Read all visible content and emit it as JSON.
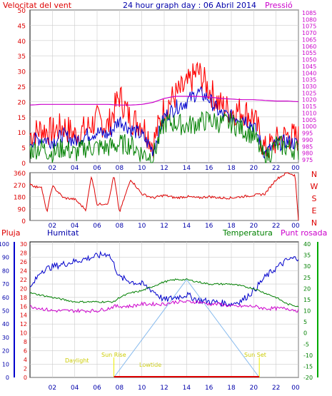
{
  "header": {
    "left_label": "Velocitat del vent",
    "title": "24 hour graph day : 06 Abril 2014",
    "right_label": "Pressió"
  },
  "x_ticks": [
    "02",
    "04",
    "06",
    "08",
    "10",
    "12",
    "14",
    "16",
    "18",
    "20",
    "22",
    "00"
  ],
  "panel2_compass": [
    "N",
    "W",
    "S",
    "E",
    "N"
  ],
  "panel3_labels": {
    "rain": "Pluja",
    "humidity": "Humitat",
    "temperature": "Temperatura",
    "dewpoint": "Punt rosada"
  },
  "sun_labels": {
    "daylight1": "Daylight",
    "sunrise": "Sun Rise",
    "lowtide": "Lowtide",
    "sunset": "Sun Set"
  },
  "colors": {
    "wind": "#ff0000",
    "gust_avg": "#0000cc",
    "speed": "#008000",
    "pressure": "#cc00cc",
    "direction": "#dd0000",
    "humidity": "#0000cc",
    "temperature": "#008000",
    "dewpoint": "#cc00cc",
    "rain": "#dd0000",
    "sun": "#88bbee",
    "grid": "#cccccc",
    "title": "#0000aa",
    "label_yellow": "#dddd00"
  },
  "chart_data": [
    {
      "type": "line",
      "title": "24 hour graph day : 06 Abril 2014",
      "x_hours": [
        0,
        1,
        2,
        3,
        4,
        5,
        6,
        7,
        8,
        9,
        10,
        11,
        12,
        13,
        14,
        15,
        16,
        17,
        18,
        19,
        20,
        21,
        22,
        23,
        24
      ],
      "series": [
        {
          "name": "Velocitat del vent",
          "axis": "left",
          "values": [
            9,
            11,
            10,
            12,
            9,
            11,
            14,
            12,
            22,
            14,
            13,
            6,
            18,
            22,
            25,
            30,
            24,
            19,
            17,
            17,
            15,
            4,
            7,
            9,
            8
          ]
        },
        {
          "name": "",
          "axis": "left",
          "values": [
            7,
            8,
            7,
            9,
            7,
            9,
            10,
            9,
            14,
            11,
            9,
            4,
            15,
            18,
            20,
            23,
            21,
            16,
            15,
            15,
            12,
            3,
            6,
            7,
            6
          ]
        },
        {
          "name": "",
          "axis": "left",
          "values": [
            4,
            5,
            3,
            5,
            3,
            5,
            5,
            5,
            6,
            6,
            3,
            2,
            13,
            13,
            12,
            13,
            14,
            13,
            13,
            11,
            9,
            1,
            6,
            5,
            4
          ]
        },
        {
          "name": "Pressió",
          "axis": "right",
          "values": [
            1016,
            1016.5,
            1016.5,
            1016.5,
            1016.5,
            1016.5,
            1016.5,
            1016.5,
            1016,
            1016,
            1016.5,
            1018,
            1021,
            1022.5,
            1022.5,
            1022.5,
            1022,
            1021,
            1020.5,
            1020,
            1020,
            1019.5,
            1019,
            1019,
            1018.5
          ]
        }
      ],
      "y_left": {
        "min": 0,
        "max": 50,
        "ticks": [
          0,
          5,
          10,
          15,
          20,
          25,
          30,
          35,
          40,
          45,
          50
        ]
      },
      "y_right": {
        "min": 975,
        "max": 1085,
        "ticks": [
          975,
          980,
          985,
          990,
          995,
          1000,
          1005,
          1010,
          1015,
          1020,
          1025,
          1030,
          1035,
          1040,
          1045,
          1050,
          1055,
          1060,
          1065,
          1070,
          1075,
          1080,
          1085
        ],
        "note": "right axis labels as printed"
      },
      "right_axis_printed": [
        "1085",
        "1080",
        "1075",
        "1070",
        "1065",
        "1060",
        "1055",
        "1050",
        "1045",
        "1040",
        "1035",
        "1030",
        "1025",
        "1020",
        "1015",
        "1010",
        "1005",
        "1000",
        "995",
        "990",
        "985",
        "980",
        "975"
      ]
    },
    {
      "type": "line",
      "title": "",
      "x_hours": [
        0,
        0.5,
        1,
        1.5,
        2,
        3,
        4,
        5,
        5.5,
        6,
        7,
        7.5,
        8,
        9,
        10,
        11,
        12,
        13,
        14,
        15,
        16,
        17,
        18,
        19,
        20,
        21,
        22,
        23,
        23.7,
        24
      ],
      "series": [
        {
          "name": "",
          "values": [
            280,
            250,
            260,
            60,
            260,
            170,
            160,
            80,
            340,
            120,
            130,
            340,
            60,
            310,
            200,
            170,
            190,
            170,
            180,
            170,
            180,
            170,
            170,
            180,
            190,
            200,
            310,
            360,
            340,
            0
          ]
        }
      ],
      "y": {
        "min": 0,
        "max": 360,
        "ticks": [
          0,
          90,
          180,
          270,
          360
        ],
        "ticks_printed": [
          "360",
          "270",
          "180",
          "90",
          "0"
        ]
      },
      "right_labels": [
        "N",
        "W",
        "S",
        "E",
        "N"
      ]
    },
    {
      "type": "line",
      "title": "",
      "x_hours": [
        0,
        1,
        2,
        3,
        4,
        5,
        6,
        7,
        7.5,
        8,
        9,
        10,
        11,
        12,
        13,
        14,
        15,
        16,
        17,
        18,
        19,
        20,
        21,
        22,
        23,
        24
      ],
      "series": [
        {
          "name": "Humitat",
          "axis": "humidity",
          "values": [
            66,
            80,
            83,
            85,
            87,
            89,
            91,
            93,
            85,
            75,
            72,
            70,
            65,
            58,
            60,
            62,
            58,
            57,
            56,
            55,
            58,
            65,
            75,
            82,
            88,
            90
          ]
        },
        {
          "name": "Temperatura",
          "axis": "temperature",
          "values": [
            18,
            17,
            16,
            15,
            14,
            14,
            14,
            14,
            14,
            16,
            18,
            19,
            21,
            23,
            24,
            24,
            23,
            22,
            22,
            22,
            21,
            20,
            18,
            16,
            13,
            12
          ]
        },
        {
          "name": "Punt rosada",
          "axis": "temperature",
          "values": [
            12,
            11,
            10,
            10,
            10,
            10,
            10,
            11,
            12,
            12,
            12,
            13,
            13,
            13,
            14,
            14,
            14,
            13,
            13,
            12,
            12,
            12,
            11,
            11,
            11,
            10
          ]
        },
        {
          "name": "Pluja",
          "axis": "rain",
          "values": [
            0,
            0,
            0,
            0,
            0,
            0,
            0,
            0,
            0,
            0,
            0,
            0,
            0,
            0,
            0,
            0,
            0,
            0,
            0,
            0,
            0,
            0,
            0,
            0,
            0,
            0
          ]
        }
      ],
      "y_rain": {
        "min": 0,
        "max": 30,
        "ticks_printed": [
          "30",
          "28",
          "26",
          "24",
          "22",
          "20",
          "18",
          "16",
          "14",
          "12",
          "10",
          "8",
          "6",
          "4",
          "2",
          "0"
        ]
      },
      "y_humidity": {
        "min": 0,
        "max": 100,
        "ticks_printed": [
          "100",
          "90",
          "80",
          "70",
          "60",
          "50",
          "40",
          "30",
          "20",
          "10",
          "0"
        ]
      },
      "y_temperature": {
        "min": -20,
        "max": 40,
        "ticks_printed": [
          "40",
          "35",
          "30",
          "25",
          "20",
          "15",
          "10",
          "5",
          "0",
          "-5",
          "-10",
          "-15",
          "-20"
        ]
      },
      "sun_curve": {
        "sunrise_hour": 7.5,
        "sunset_hour": 20.5,
        "peak_hour": 14
      }
    }
  ]
}
